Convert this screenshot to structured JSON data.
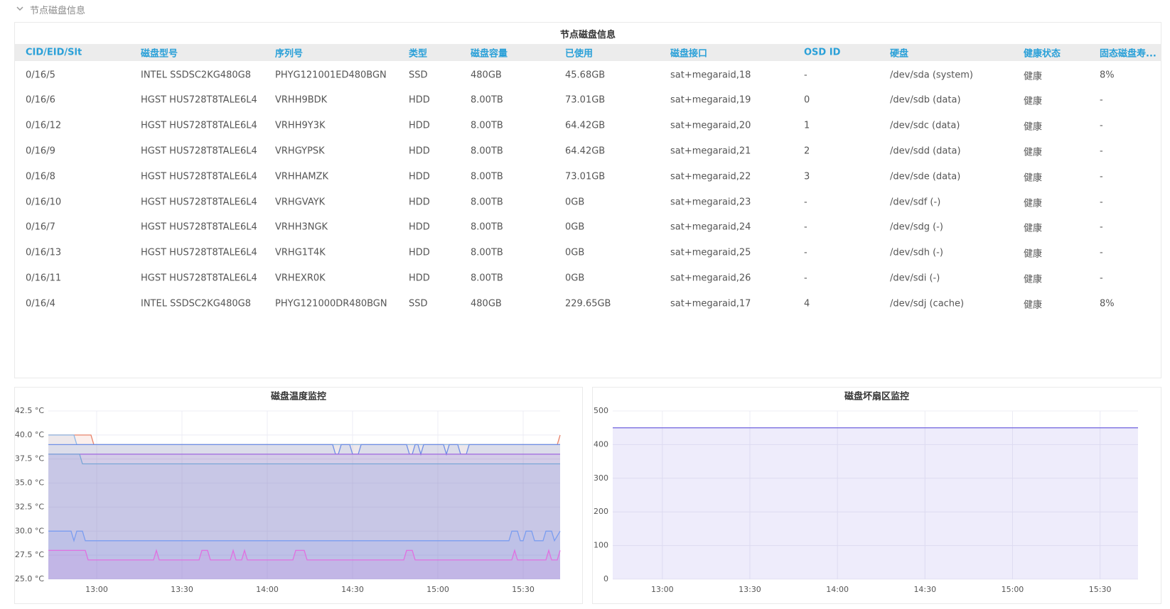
{
  "header": {
    "title": "节点磁盘信息"
  },
  "table": {
    "title": "节点磁盘信息",
    "columns": [
      "CID/EID/Slt",
      "磁盘型号",
      "序列号",
      "类型",
      "磁盘容量",
      "已使用",
      "磁盘接口",
      "OSD ID",
      "硬盘",
      "健康状态",
      "固态磁盘寿..."
    ],
    "rows": [
      [
        "0/16/5",
        "INTEL SSDSC2KG480G8",
        "PHYG121001ED480BGN",
        "SSD",
        "480GB",
        "45.68GB",
        "sat+megaraid,18",
        "-",
        "/dev/sda (system)",
        "健康",
        "8%"
      ],
      [
        "0/16/6",
        "HGST HUS728T8TALE6L4",
        "VRHH9BDK",
        "HDD",
        "8.00TB",
        "73.01GB",
        "sat+megaraid,19",
        "0",
        "/dev/sdb (data)",
        "健康",
        "-"
      ],
      [
        "0/16/12",
        "HGST HUS728T8TALE6L4",
        "VRHH9Y3K",
        "HDD",
        "8.00TB",
        "64.42GB",
        "sat+megaraid,20",
        "1",
        "/dev/sdc (data)",
        "健康",
        "-"
      ],
      [
        "0/16/9",
        "HGST HUS728T8TALE6L4",
        "VRHGYPSK",
        "HDD",
        "8.00TB",
        "64.42GB",
        "sat+megaraid,21",
        "2",
        "/dev/sdd (data)",
        "健康",
        "-"
      ],
      [
        "0/16/8",
        "HGST HUS728T8TALE6L4",
        "VRHHAMZK",
        "HDD",
        "8.00TB",
        "73.01GB",
        "sat+megaraid,22",
        "3",
        "/dev/sde (data)",
        "健康",
        "-"
      ],
      [
        "0/16/10",
        "HGST HUS728T8TALE6L4",
        "VRHGVAYK",
        "HDD",
        "8.00TB",
        "0GB",
        "sat+megaraid,23",
        "-",
        "/dev/sdf (-)",
        "健康",
        "-"
      ],
      [
        "0/16/7",
        "HGST HUS728T8TALE6L4",
        "VRHH3NGK",
        "HDD",
        "8.00TB",
        "0GB",
        "sat+megaraid,24",
        "-",
        "/dev/sdg (-)",
        "健康",
        "-"
      ],
      [
        "0/16/13",
        "HGST HUS728T8TALE6L4",
        "VRHG1T4K",
        "HDD",
        "8.00TB",
        "0GB",
        "sat+megaraid,25",
        "-",
        "/dev/sdh (-)",
        "健康",
        "-"
      ],
      [
        "0/16/11",
        "HGST HUS728T8TALE6L4",
        "VRHEXR0K",
        "HDD",
        "8.00TB",
        "0GB",
        "sat+megaraid,26",
        "-",
        "/dev/sdi (-)",
        "健康",
        "-"
      ],
      [
        "0/16/4",
        "INTEL SSDSC2KG480G8",
        "PHYG121000DR480BGN",
        "SSD",
        "480GB",
        "229.65GB",
        "sat+megaraid,17",
        "4",
        "/dev/sdj (cache)",
        "健康",
        "8%"
      ]
    ]
  },
  "chart_data": [
    {
      "type": "area",
      "title": "磁盘温度监控",
      "grid": true,
      "xlim": [
        "12:43",
        "15:43"
      ],
      "xticks": [
        "13:00",
        "13:30",
        "14:00",
        "14:30",
        "15:00",
        "15:30"
      ],
      "ylim": [
        25,
        42.5
      ],
      "yticks": [
        {
          "value": 25,
          "label": "25.0 °C"
        },
        {
          "value": 27.5,
          "label": "27.5 °C"
        },
        {
          "value": 30,
          "label": "30.0 °C"
        },
        {
          "value": 32.5,
          "label": "32.5 °C"
        },
        {
          "value": 35,
          "label": "35.0 °C"
        },
        {
          "value": 37.5,
          "label": "37.5 °C"
        },
        {
          "value": 40,
          "label": "40.0 °C"
        },
        {
          "value": 42.5,
          "label": "42.5 °C"
        }
      ],
      "series": [
        {
          "color": "#e8836b",
          "x": [
            "12:43",
            "12:58",
            "12:59",
            "15:42",
            "15:43"
          ],
          "values": [
            40,
            40,
            39,
            39,
            40
          ]
        },
        {
          "color": "#8cb8e8",
          "x": [
            "12:43",
            "12:52",
            "12:53",
            "15:43"
          ],
          "values": [
            40,
            40,
            39,
            39
          ]
        },
        {
          "color": "#6f8fe6",
          "x": [
            "12:43",
            "14:23",
            "14:24",
            "14:25",
            "14:26",
            "14:29",
            "14:30",
            "14:32",
            "14:33",
            "14:49",
            "14:50",
            "14:51",
            "14:52",
            "14:53",
            "14:54",
            "14:55",
            "15:02",
            "15:03",
            "15:04",
            "15:07",
            "15:08",
            "15:10",
            "15:11",
            "15:43"
          ],
          "values": [
            39,
            39,
            38,
            38,
            39,
            39,
            38,
            38,
            39,
            39,
            38,
            38,
            39,
            39,
            38,
            39,
            39,
            38,
            39,
            39,
            38,
            38,
            39,
            39
          ]
        },
        {
          "color": "#a066e0",
          "x": [
            "12:43",
            "15:43"
          ],
          "values": [
            38,
            38
          ]
        },
        {
          "color": "#7aa6d6",
          "x": [
            "12:43",
            "12:54",
            "12:55",
            "15:43"
          ],
          "values": [
            38,
            38,
            37,
            37
          ]
        },
        {
          "color": "#7b9df0",
          "x": [
            "12:43",
            "12:51",
            "12:52",
            "12:53",
            "12:55",
            "12:56",
            "15:25",
            "15:26",
            "15:28",
            "15:29",
            "15:30",
            "15:31",
            "15:33",
            "15:34",
            "15:37",
            "15:38",
            "15:40",
            "15:41",
            "15:43"
          ],
          "values": [
            30,
            30,
            29,
            30,
            30,
            29,
            29,
            30,
            30,
            29,
            29,
            30,
            30,
            29,
            29,
            30,
            30,
            29,
            30
          ]
        },
        {
          "color": "#e070e0",
          "x": [
            "12:43",
            "12:56",
            "12:57",
            "13:20",
            "13:21",
            "13:22",
            "13:36",
            "13:37",
            "13:39",
            "13:40",
            "13:47",
            "13:48",
            "13:49",
            "13:51",
            "13:52",
            "13:53",
            "14:09",
            "14:10",
            "14:13",
            "14:14",
            "14:48",
            "14:49",
            "14:51",
            "14:52",
            "15:26",
            "15:27",
            "15:28",
            "15:38",
            "15:39",
            "15:40",
            "15:42",
            "15:43"
          ],
          "values": [
            28,
            28,
            27,
            27,
            28,
            27,
            27,
            28,
            28,
            27,
            27,
            28,
            27,
            27,
            28,
            27,
            27,
            28,
            28,
            27,
            27,
            28,
            28,
            27,
            27,
            28,
            27,
            27,
            28,
            27,
            27,
            28
          ]
        }
      ]
    },
    {
      "type": "area",
      "title": "磁盘坏扇区监控",
      "grid": true,
      "xlim": [
        "12:43",
        "15:43"
      ],
      "xticks": [
        "13:00",
        "13:30",
        "14:00",
        "14:30",
        "15:00",
        "15:30"
      ],
      "ylim": [
        0,
        500
      ],
      "yticks": [
        0,
        100,
        200,
        300,
        400,
        500
      ],
      "series": [
        {
          "color": "#7b6fe0",
          "x": [
            "12:43",
            "15:43"
          ],
          "values": [
            450,
            450
          ]
        }
      ]
    }
  ]
}
